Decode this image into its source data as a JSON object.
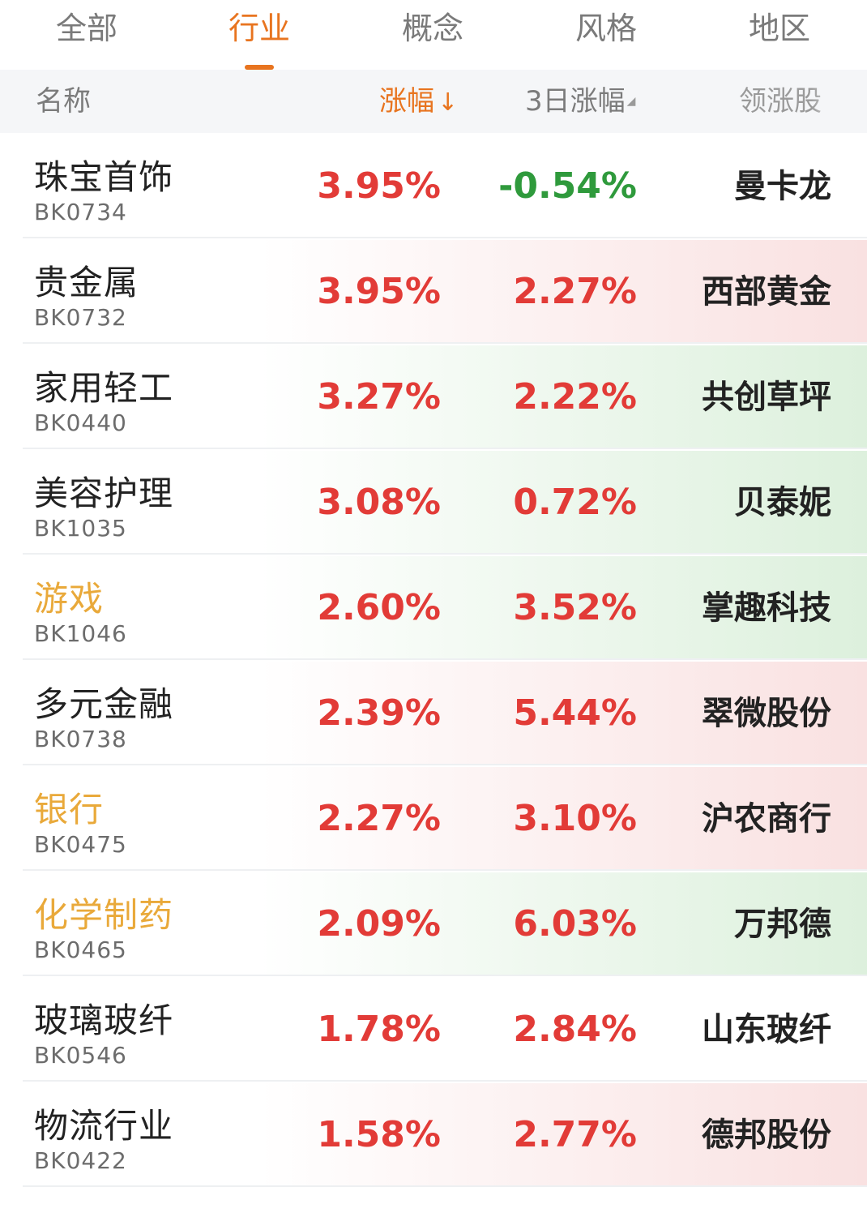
{
  "tabs": [
    {
      "label": "全部",
      "active": false
    },
    {
      "label": "行业",
      "active": true
    },
    {
      "label": "概念",
      "active": false
    },
    {
      "label": "风格",
      "active": false
    },
    {
      "label": "地区",
      "active": false
    }
  ],
  "header": {
    "name": "名称",
    "change": "涨幅",
    "change_arrow": "↓",
    "change3d": "3日涨幅",
    "change3d_sort": "◢",
    "leader": "领涨股"
  },
  "colors": {
    "accent": "#e8741f",
    "up": "#e23b37",
    "down": "#2f9a3c",
    "highlight_name": "#e9a93a"
  },
  "rows": [
    {
      "name": "珠宝首饰",
      "code": "BK0734",
      "change": "3.95%",
      "change3d": "-0.54%",
      "leader": "曼卡龙",
      "highlight": false,
      "tint": "none"
    },
    {
      "name": "贵金属",
      "code": "BK0732",
      "change": "3.95%",
      "change3d": "2.27%",
      "leader": "西部黄金",
      "highlight": false,
      "tint": "red"
    },
    {
      "name": "家用轻工",
      "code": "BK0440",
      "change": "3.27%",
      "change3d": "2.22%",
      "leader": "共创草坪",
      "highlight": false,
      "tint": "green"
    },
    {
      "name": "美容护理",
      "code": "BK1035",
      "change": "3.08%",
      "change3d": "0.72%",
      "leader": "贝泰妮",
      "highlight": false,
      "tint": "green"
    },
    {
      "name": "游戏",
      "code": "BK1046",
      "change": "2.60%",
      "change3d": "3.52%",
      "leader": "掌趣科技",
      "highlight": true,
      "tint": "green"
    },
    {
      "name": "多元金融",
      "code": "BK0738",
      "change": "2.39%",
      "change3d": "5.44%",
      "leader": "翠微股份",
      "highlight": false,
      "tint": "red"
    },
    {
      "name": "银行",
      "code": "BK0475",
      "change": "2.27%",
      "change3d": "3.10%",
      "leader": "沪农商行",
      "highlight": true,
      "tint": "red"
    },
    {
      "name": "化学制药",
      "code": "BK0465",
      "change": "2.09%",
      "change3d": "6.03%",
      "leader": "万邦德",
      "highlight": true,
      "tint": "green"
    },
    {
      "name": "玻璃玻纤",
      "code": "BK0546",
      "change": "1.78%",
      "change3d": "2.84%",
      "leader": "山东玻纤",
      "highlight": false,
      "tint": "none"
    },
    {
      "name": "物流行业",
      "code": "BK0422",
      "change": "1.58%",
      "change3d": "2.77%",
      "leader": "德邦股份",
      "highlight": false,
      "tint": "red"
    }
  ]
}
